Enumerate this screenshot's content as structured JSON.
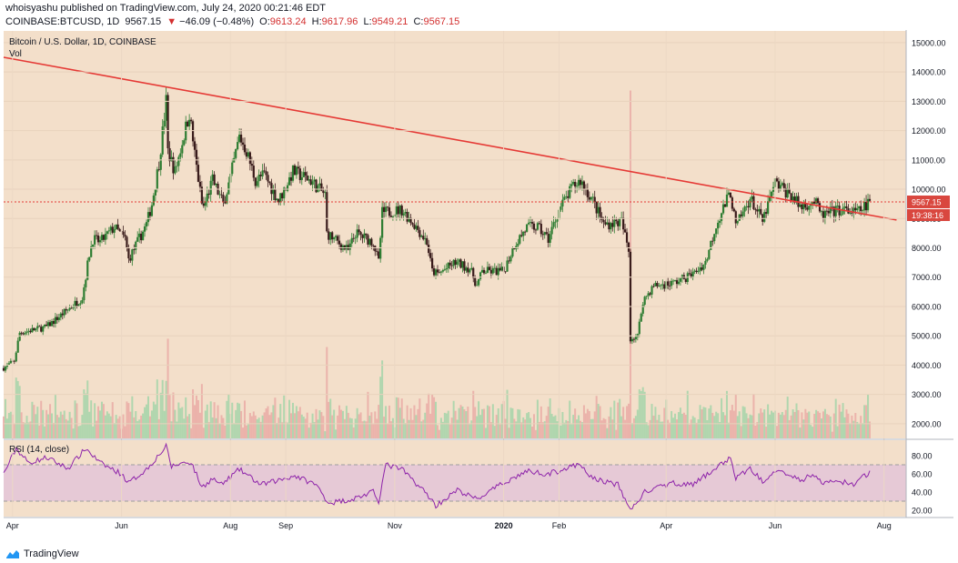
{
  "header": {
    "publisher_line": "whoisyashu published on TradingView.com, July 24, 2020 00:21:46 EDT",
    "symbol": "COINBASE:BTCUSD, 1D",
    "last": "9567.15",
    "change_arrow": "▼",
    "change": "−46.09 (−0.48%)",
    "o_label": "O:",
    "o_value": "9613.24",
    "h_label": "H:",
    "h_value": "9617.96",
    "l_label": "L:",
    "l_value": "9549.21",
    "c_label": "C:",
    "c_value": "9567.15"
  },
  "footer": {
    "brand": "TradingView"
  },
  "colors": {
    "background": "#f3dfca",
    "up": "#2e7d32",
    "down": "#3a1c1c",
    "trendline": "#e53935",
    "rsi_line": "#8e24aa",
    "rsi_band": "#e6c9d6",
    "price_tag": "#d9473f"
  },
  "chart_data": {
    "type": "candlestick",
    "title": "Bitcoin / U.S. Dollar, 1D, COINBASE",
    "volume_label": "Vol",
    "x_tick_labels": [
      "Apr",
      "Jun",
      "Aug",
      "Sep",
      "Nov",
      "2020",
      "Feb",
      "Apr",
      "Jun",
      "Aug"
    ],
    "y_tick_labels": [
      "2000.00",
      "3000.00",
      "4000.00",
      "5000.00",
      "6000.00",
      "7000.00",
      "8000.00",
      "9000.00",
      "10000.00",
      "11000.00",
      "12000.00",
      "13000.00",
      "14000.00",
      "15000.00"
    ],
    "y_ticks": [
      2000,
      3000,
      4000,
      5000,
      6000,
      7000,
      8000,
      9000,
      10000,
      11000,
      12000,
      13000,
      14000,
      15000
    ],
    "ylim": [
      1500,
      15400
    ],
    "x_dates": [
      "2019-03-27",
      "2020-07-24"
    ],
    "price_anchors": [
      [
        "2019-03-27",
        3900
      ],
      [
        "2019-04-02",
        4150
      ],
      [
        "2019-04-05",
        5100
      ],
      [
        "2019-04-20",
        5300
      ],
      [
        "2019-05-10",
        6300
      ],
      [
        "2019-05-14",
        7800
      ],
      [
        "2019-05-16",
        8300
      ],
      [
        "2019-05-20",
        8200
      ],
      [
        "2019-05-28",
        8700
      ],
      [
        "2019-06-03",
        8300
      ],
      [
        "2019-06-05",
        7600
      ],
      [
        "2019-06-15",
        8800
      ],
      [
        "2019-06-18",
        9500
      ],
      [
        "2019-06-22",
        10900
      ],
      [
        "2019-06-26",
        13000
      ],
      [
        "2019-06-27",
        11300
      ],
      [
        "2019-07-01",
        10600
      ],
      [
        "2019-07-09",
        12600
      ],
      [
        "2019-07-12",
        11200
      ],
      [
        "2019-07-16",
        9500
      ],
      [
        "2019-07-17",
        9400
      ],
      [
        "2019-07-22",
        10300
      ],
      [
        "2019-07-28",
        9500
      ],
      [
        "2019-08-01",
        10400
      ],
      [
        "2019-08-06",
        11800
      ],
      [
        "2019-08-10",
        11300
      ],
      [
        "2019-08-15",
        10300
      ],
      [
        "2019-08-20",
        10500
      ],
      [
        "2019-08-28",
        9600
      ],
      [
        "2019-09-05",
        10600
      ],
      [
        "2019-09-15",
        10300
      ],
      [
        "2019-09-23",
        9800
      ],
      [
        "2019-09-24",
        8500
      ],
      [
        "2019-10-06",
        7900
      ],
      [
        "2019-10-10",
        8500
      ],
      [
        "2019-10-20",
        8200
      ],
      [
        "2019-10-23",
        7500
      ],
      [
        "2019-10-25",
        9200
      ],
      [
        "2019-11-05",
        9300
      ],
      [
        "2019-11-12",
        8800
      ],
      [
        "2019-11-19",
        8200
      ],
      [
        "2019-11-22",
        7200
      ],
      [
        "2019-11-25",
        7100
      ],
      [
        "2019-12-05",
        7500
      ],
      [
        "2019-12-13",
        7300
      ],
      [
        "2019-12-17",
        6700
      ],
      [
        "2019-12-20",
        7200
      ],
      [
        "2020-01-01",
        7200
      ],
      [
        "2020-01-07",
        8100
      ],
      [
        "2020-01-14",
        8700
      ],
      [
        "2020-01-20",
        8700
      ],
      [
        "2020-01-26",
        8300
      ],
      [
        "2020-02-01",
        9300
      ],
      [
        "2020-02-09",
        10100
      ],
      [
        "2020-02-13",
        10300
      ],
      [
        "2020-02-20",
        9600
      ],
      [
        "2020-02-26",
        8800
      ],
      [
        "2020-03-07",
        8900
      ],
      [
        "2020-03-11",
        7900
      ],
      [
        "2020-03-12",
        4900
      ],
      [
        "2020-03-16",
        5000
      ],
      [
        "2020-03-19",
        6200
      ],
      [
        "2020-03-25",
        6700
      ],
      [
        "2020-04-05",
        6800
      ],
      [
        "2020-04-16",
        7100
      ],
      [
        "2020-04-23",
        7500
      ],
      [
        "2020-04-29",
        8800
      ],
      [
        "2020-05-07",
        9900
      ],
      [
        "2020-05-10",
        8700
      ],
      [
        "2020-05-18",
        9700
      ],
      [
        "2020-05-25",
        8900
      ],
      [
        "2020-06-01",
        10200
      ],
      [
        "2020-06-10",
        9800
      ],
      [
        "2020-06-15",
        9400
      ],
      [
        "2020-06-23",
        9600
      ],
      [
        "2020-06-27",
        9100
      ],
      [
        "2020-07-07",
        9300
      ],
      [
        "2020-07-17",
        9200
      ],
      [
        "2020-07-21",
        9400
      ],
      [
        "2020-07-24",
        9567
      ]
    ],
    "rsi": {
      "label": "RSI (14, close)",
      "ylim": [
        13,
        97
      ],
      "y_ticks": [
        20,
        40,
        60,
        80
      ],
      "y_tick_labels": [
        "20.00",
        "40.00",
        "60.00",
        "80.00"
      ],
      "band": [
        30,
        70
      ],
      "anchors": [
        [
          "2019-03-27",
          60
        ],
        [
          "2019-04-03",
          88
        ],
        [
          "2019-04-10",
          72
        ],
        [
          "2019-04-20",
          78
        ],
        [
          "2019-05-02",
          66
        ],
        [
          "2019-05-12",
          88
        ],
        [
          "2019-05-20",
          72
        ],
        [
          "2019-06-01",
          60
        ],
        [
          "2019-06-05",
          50
        ],
        [
          "2019-06-15",
          65
        ],
        [
          "2019-06-26",
          90
        ],
        [
          "2019-06-29",
          68
        ],
        [
          "2019-07-05",
          72
        ],
        [
          "2019-07-10",
          73
        ],
        [
          "2019-07-16",
          45
        ],
        [
          "2019-07-22",
          55
        ],
        [
          "2019-07-27",
          48
        ],
        [
          "2019-08-06",
          65
        ],
        [
          "2019-08-18",
          48
        ],
        [
          "2019-08-26",
          52
        ],
        [
          "2019-09-06",
          58
        ],
        [
          "2019-09-18",
          48
        ],
        [
          "2019-09-25",
          28
        ],
        [
          "2019-10-08",
          32
        ],
        [
          "2019-10-20",
          40
        ],
        [
          "2019-10-23",
          30
        ],
        [
          "2019-10-27",
          70
        ],
        [
          "2019-11-05",
          65
        ],
        [
          "2019-11-19",
          38
        ],
        [
          "2019-11-24",
          25
        ],
        [
          "2019-12-06",
          42
        ],
        [
          "2019-12-17",
          32
        ],
        [
          "2020-01-01",
          50
        ],
        [
          "2020-01-14",
          63
        ],
        [
          "2020-01-26",
          60
        ],
        [
          "2020-02-12",
          70
        ],
        [
          "2020-02-20",
          55
        ],
        [
          "2020-03-05",
          48
        ],
        [
          "2020-03-12",
          20
        ],
        [
          "2020-03-20",
          40
        ],
        [
          "2020-04-05",
          50
        ],
        [
          "2020-04-16",
          48
        ],
        [
          "2020-05-07",
          78
        ],
        [
          "2020-05-10",
          55
        ],
        [
          "2020-05-18",
          66
        ],
        [
          "2020-05-25",
          52
        ],
        [
          "2020-06-02",
          66
        ],
        [
          "2020-06-15",
          52
        ],
        [
          "2020-06-22",
          60
        ],
        [
          "2020-06-27",
          50
        ],
        [
          "2020-07-07",
          52
        ],
        [
          "2020-07-16",
          48
        ],
        [
          "2020-07-21",
          58
        ],
        [
          "2020-07-24",
          61
        ]
      ]
    },
    "trendline": {
      "start": [
        "2019-03-27",
        14500
      ],
      "end": [
        "2020-08-08",
        8950
      ]
    },
    "last_price": 9567.15,
    "price_tag": "9567.15",
    "countdown_tag": "19:38:16"
  }
}
